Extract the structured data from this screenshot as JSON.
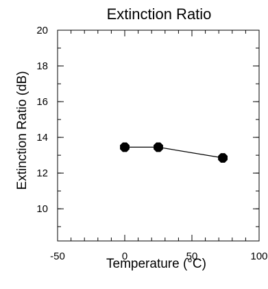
{
  "chart_data": {
    "type": "line",
    "title": "Extinction Ratio",
    "xlabel": "Temperature (°C)",
    "ylabel": "Extinction Ratio (dB)",
    "xlim": [
      -50,
      100
    ],
    "ylim": [
      8.2,
      20
    ],
    "x_ticks": [
      -50,
      0,
      50,
      100
    ],
    "x_tick_labels": [
      "-50",
      "0",
      "50",
      "100"
    ],
    "x_minor_step": 10,
    "y_ticks": [
      10,
      12,
      14,
      16,
      18,
      20
    ],
    "y_tick_labels": [
      "10",
      "12",
      "14",
      "16",
      "18",
      "20"
    ],
    "y_minor_step": 1,
    "grid": false,
    "series": [
      {
        "x": [
          0,
          25,
          73
        ],
        "y": [
          13.45,
          13.45,
          12.85
        ]
      }
    ],
    "colors": {
      "line": "#000000",
      "marker": "#000000",
      "axis": "#000000"
    }
  }
}
